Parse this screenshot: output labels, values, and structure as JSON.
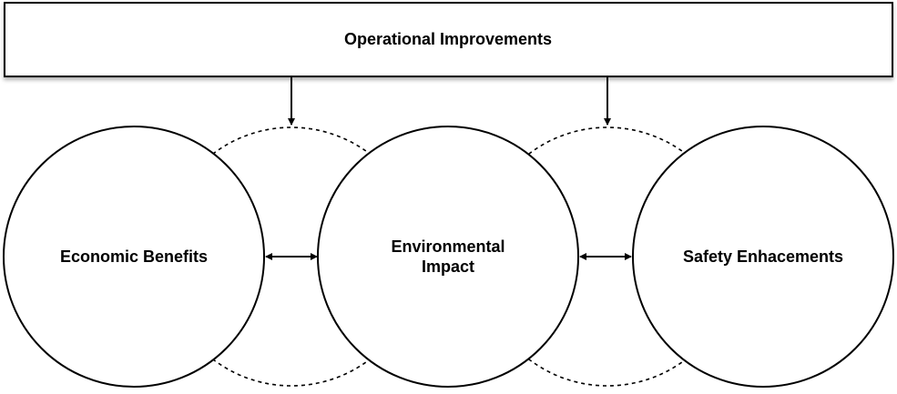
{
  "header": {
    "label": "Operational Improvements"
  },
  "nodes": [
    {
      "id": "economic",
      "label": "Economic Benefits"
    },
    {
      "id": "environmental",
      "label": "Environmental\nImpact"
    },
    {
      "id": "safety",
      "label": "Safety Enhacements"
    }
  ],
  "colors": {
    "stroke": "#000000",
    "background": "#ffffff"
  }
}
